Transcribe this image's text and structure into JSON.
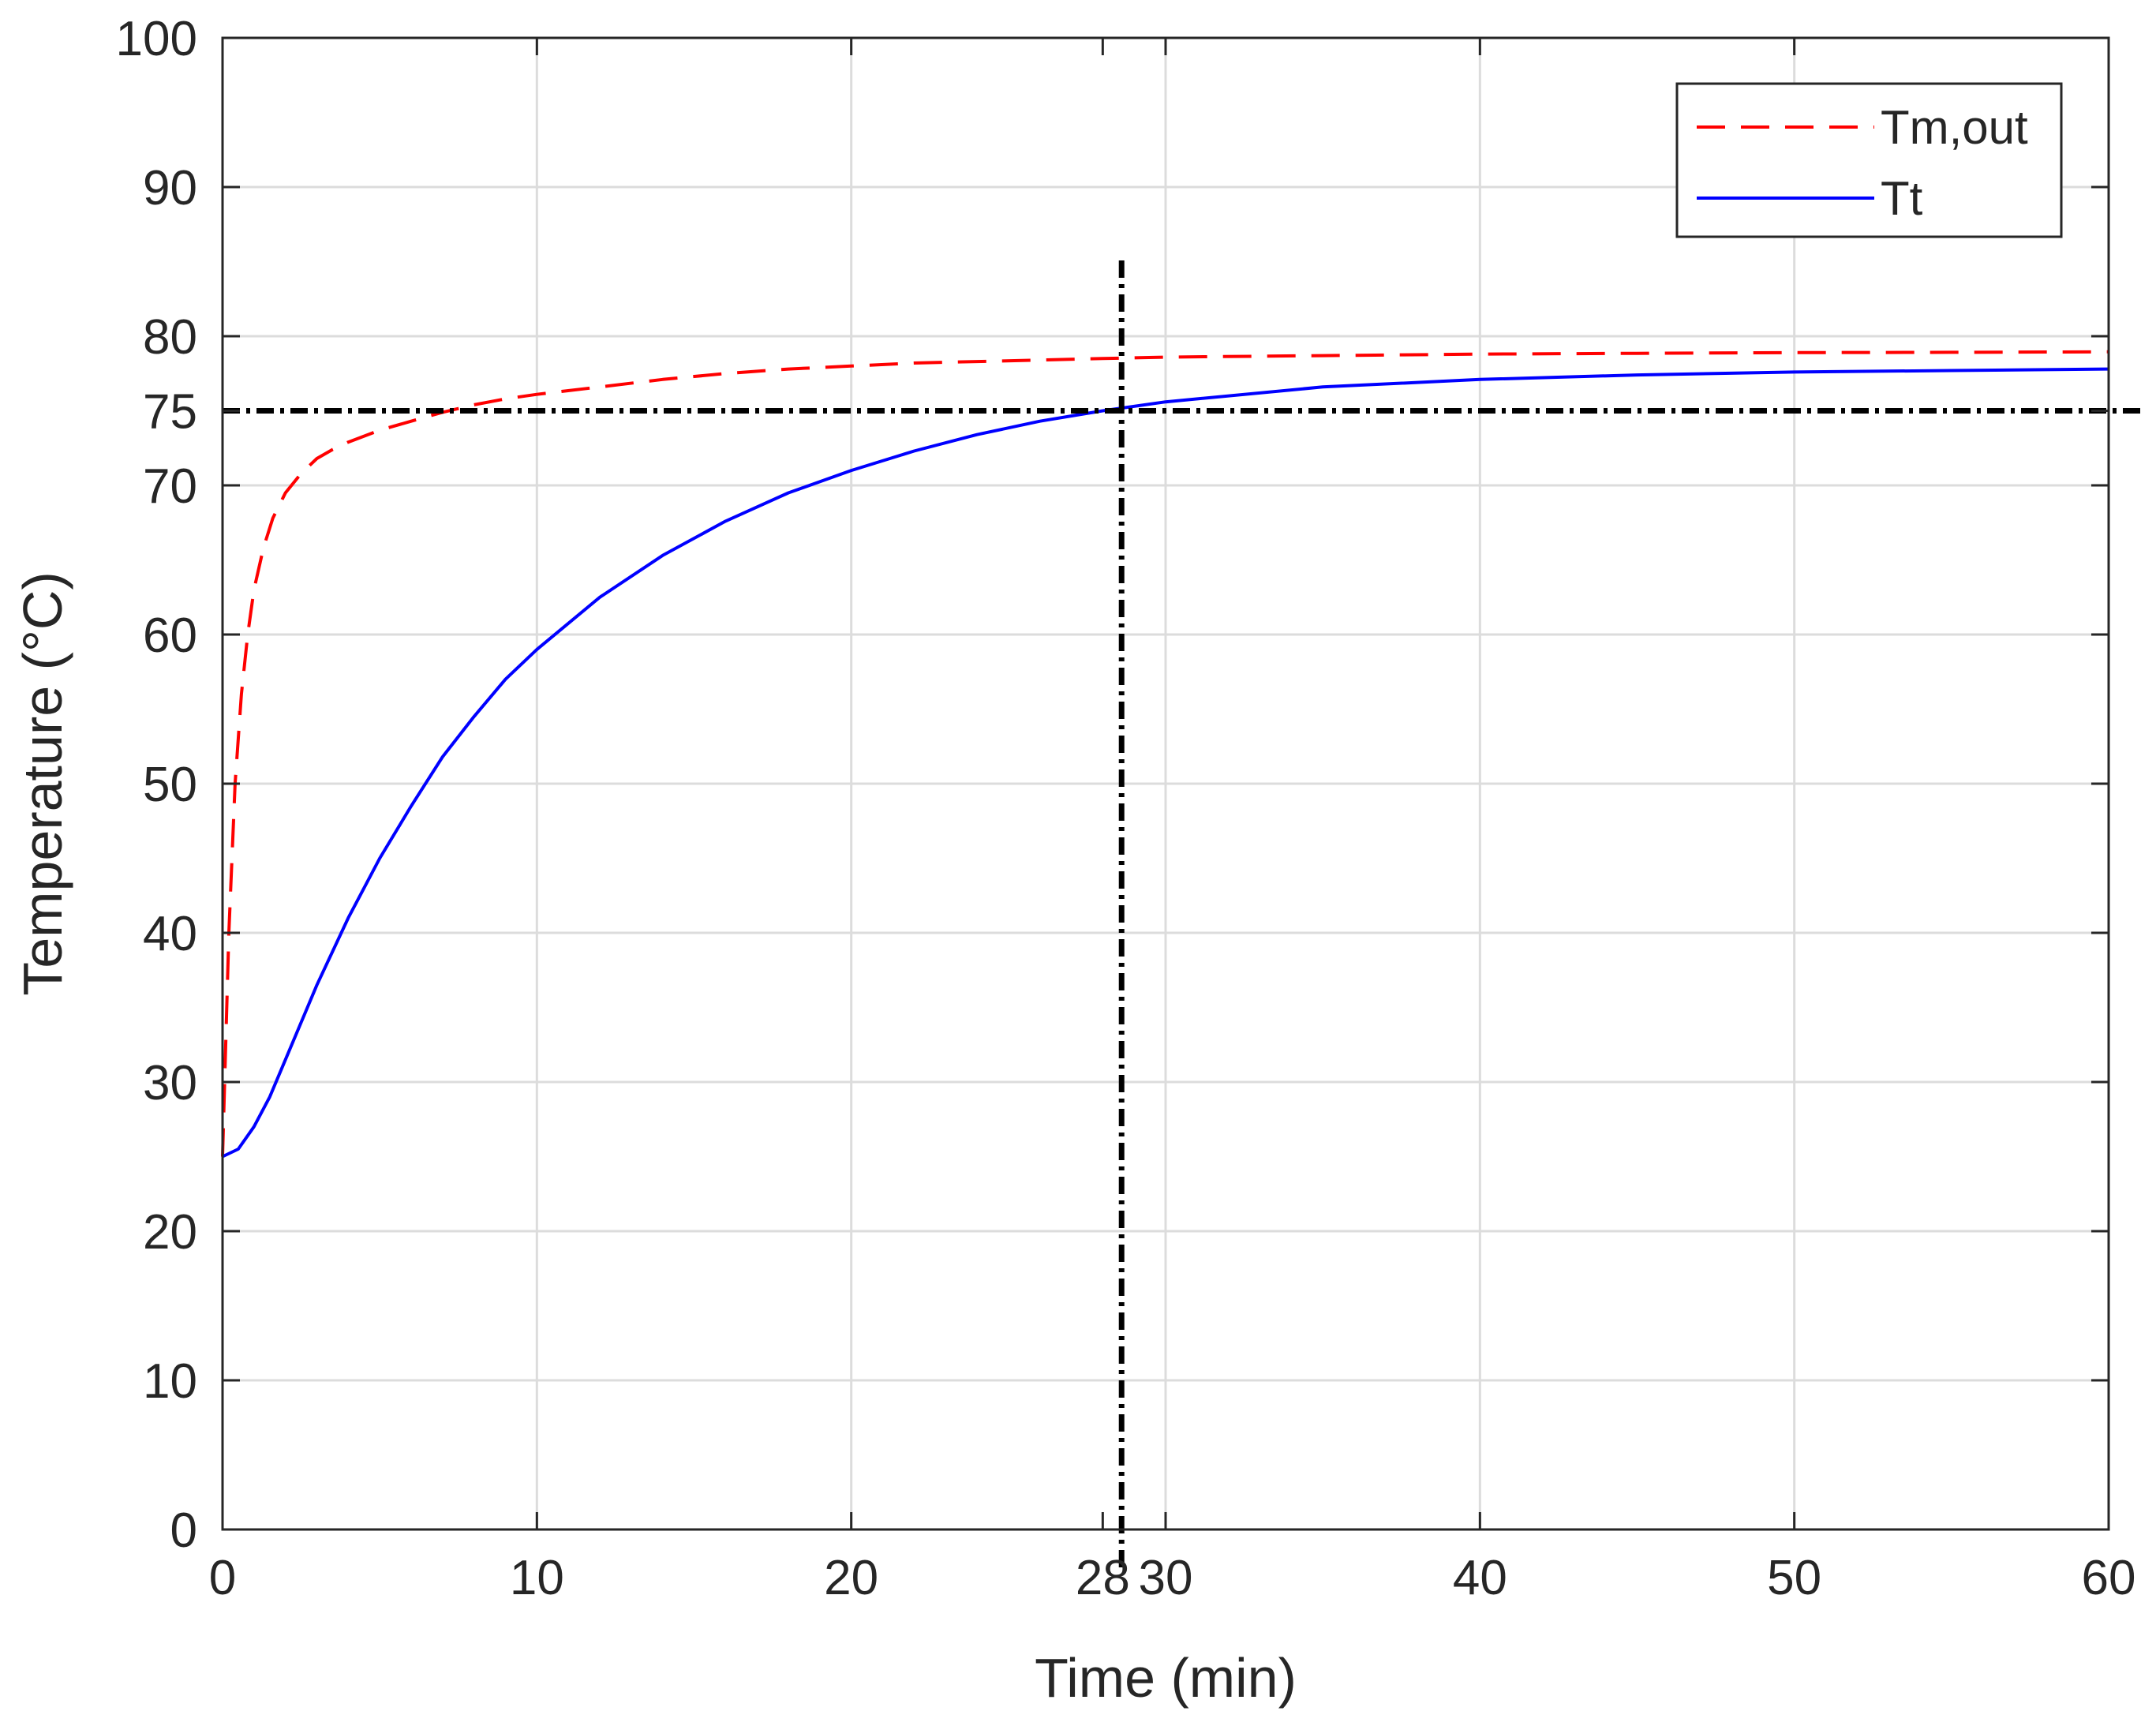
{
  "chart_data": {
    "type": "line",
    "title": "",
    "xlabel": "Time (min)",
    "ylabel": "Temperature (°C)",
    "xlim": [
      0,
      60
    ],
    "ylim": [
      0,
      100
    ],
    "xticks": [
      0,
      10,
      20,
      28,
      30,
      40,
      50,
      60
    ],
    "yticks": [
      0,
      10,
      20,
      30,
      40,
      50,
      60,
      70,
      75,
      80,
      90,
      100
    ],
    "grid_x": [
      0,
      10,
      20,
      30,
      40,
      50,
      60
    ],
    "grid_y": [
      0,
      10,
      20,
      30,
      40,
      50,
      60,
      70,
      80,
      90,
      100
    ],
    "grid": true,
    "legend_position": "top-right",
    "series": [
      {
        "name": "Tm,out",
        "color": "#ff0000",
        "style": "dashed",
        "x": [
          0,
          0.2,
          0.4,
          0.6,
          0.8,
          1,
          1.3,
          1.6,
          2,
          2.5,
          3,
          3.5,
          4,
          5,
          6,
          7,
          8,
          9,
          10,
          12,
          14,
          16,
          18,
          20,
          22,
          24,
          26,
          28,
          30,
          35,
          40,
          45,
          50,
          55,
          60
        ],
        "y": [
          25,
          40,
          50,
          56,
          60,
          63,
          65.8,
          67.8,
          69.5,
          70.8,
          71.8,
          72.4,
          72.9,
          73.7,
          74.3,
          74.9,
          75.4,
          75.8,
          76.1,
          76.6,
          77.1,
          77.5,
          77.8,
          78.0,
          78.2,
          78.3,
          78.4,
          78.5,
          78.6,
          78.7,
          78.8,
          78.85,
          78.9,
          78.92,
          78.95
        ]
      },
      {
        "name": "Tt",
        "color": "#0000ff",
        "style": "solid",
        "x": [
          0,
          0.5,
          1,
          1.5,
          2,
          3,
          4,
          5,
          6,
          7,
          8,
          9,
          10,
          12,
          14,
          16,
          18,
          20,
          22,
          24,
          26,
          28,
          30,
          35,
          40,
          45,
          50,
          55,
          60
        ],
        "y": [
          25,
          25.5,
          27,
          29,
          31.5,
          36.5,
          41,
          45,
          48.5,
          51.8,
          54.5,
          57,
          59,
          62.5,
          65.3,
          67.6,
          69.5,
          71,
          72.3,
          73.4,
          74.3,
          75,
          75.6,
          76.6,
          77.1,
          77.4,
          77.6,
          77.7,
          77.8
        ]
      }
    ],
    "reference_lines": [
      {
        "orientation": "horizontal",
        "y": 75,
        "style": "dash-dot",
        "color": "#000000"
      },
      {
        "orientation": "vertical",
        "x": 28.6,
        "style": "dash-dot",
        "color": "#000000"
      }
    ]
  }
}
